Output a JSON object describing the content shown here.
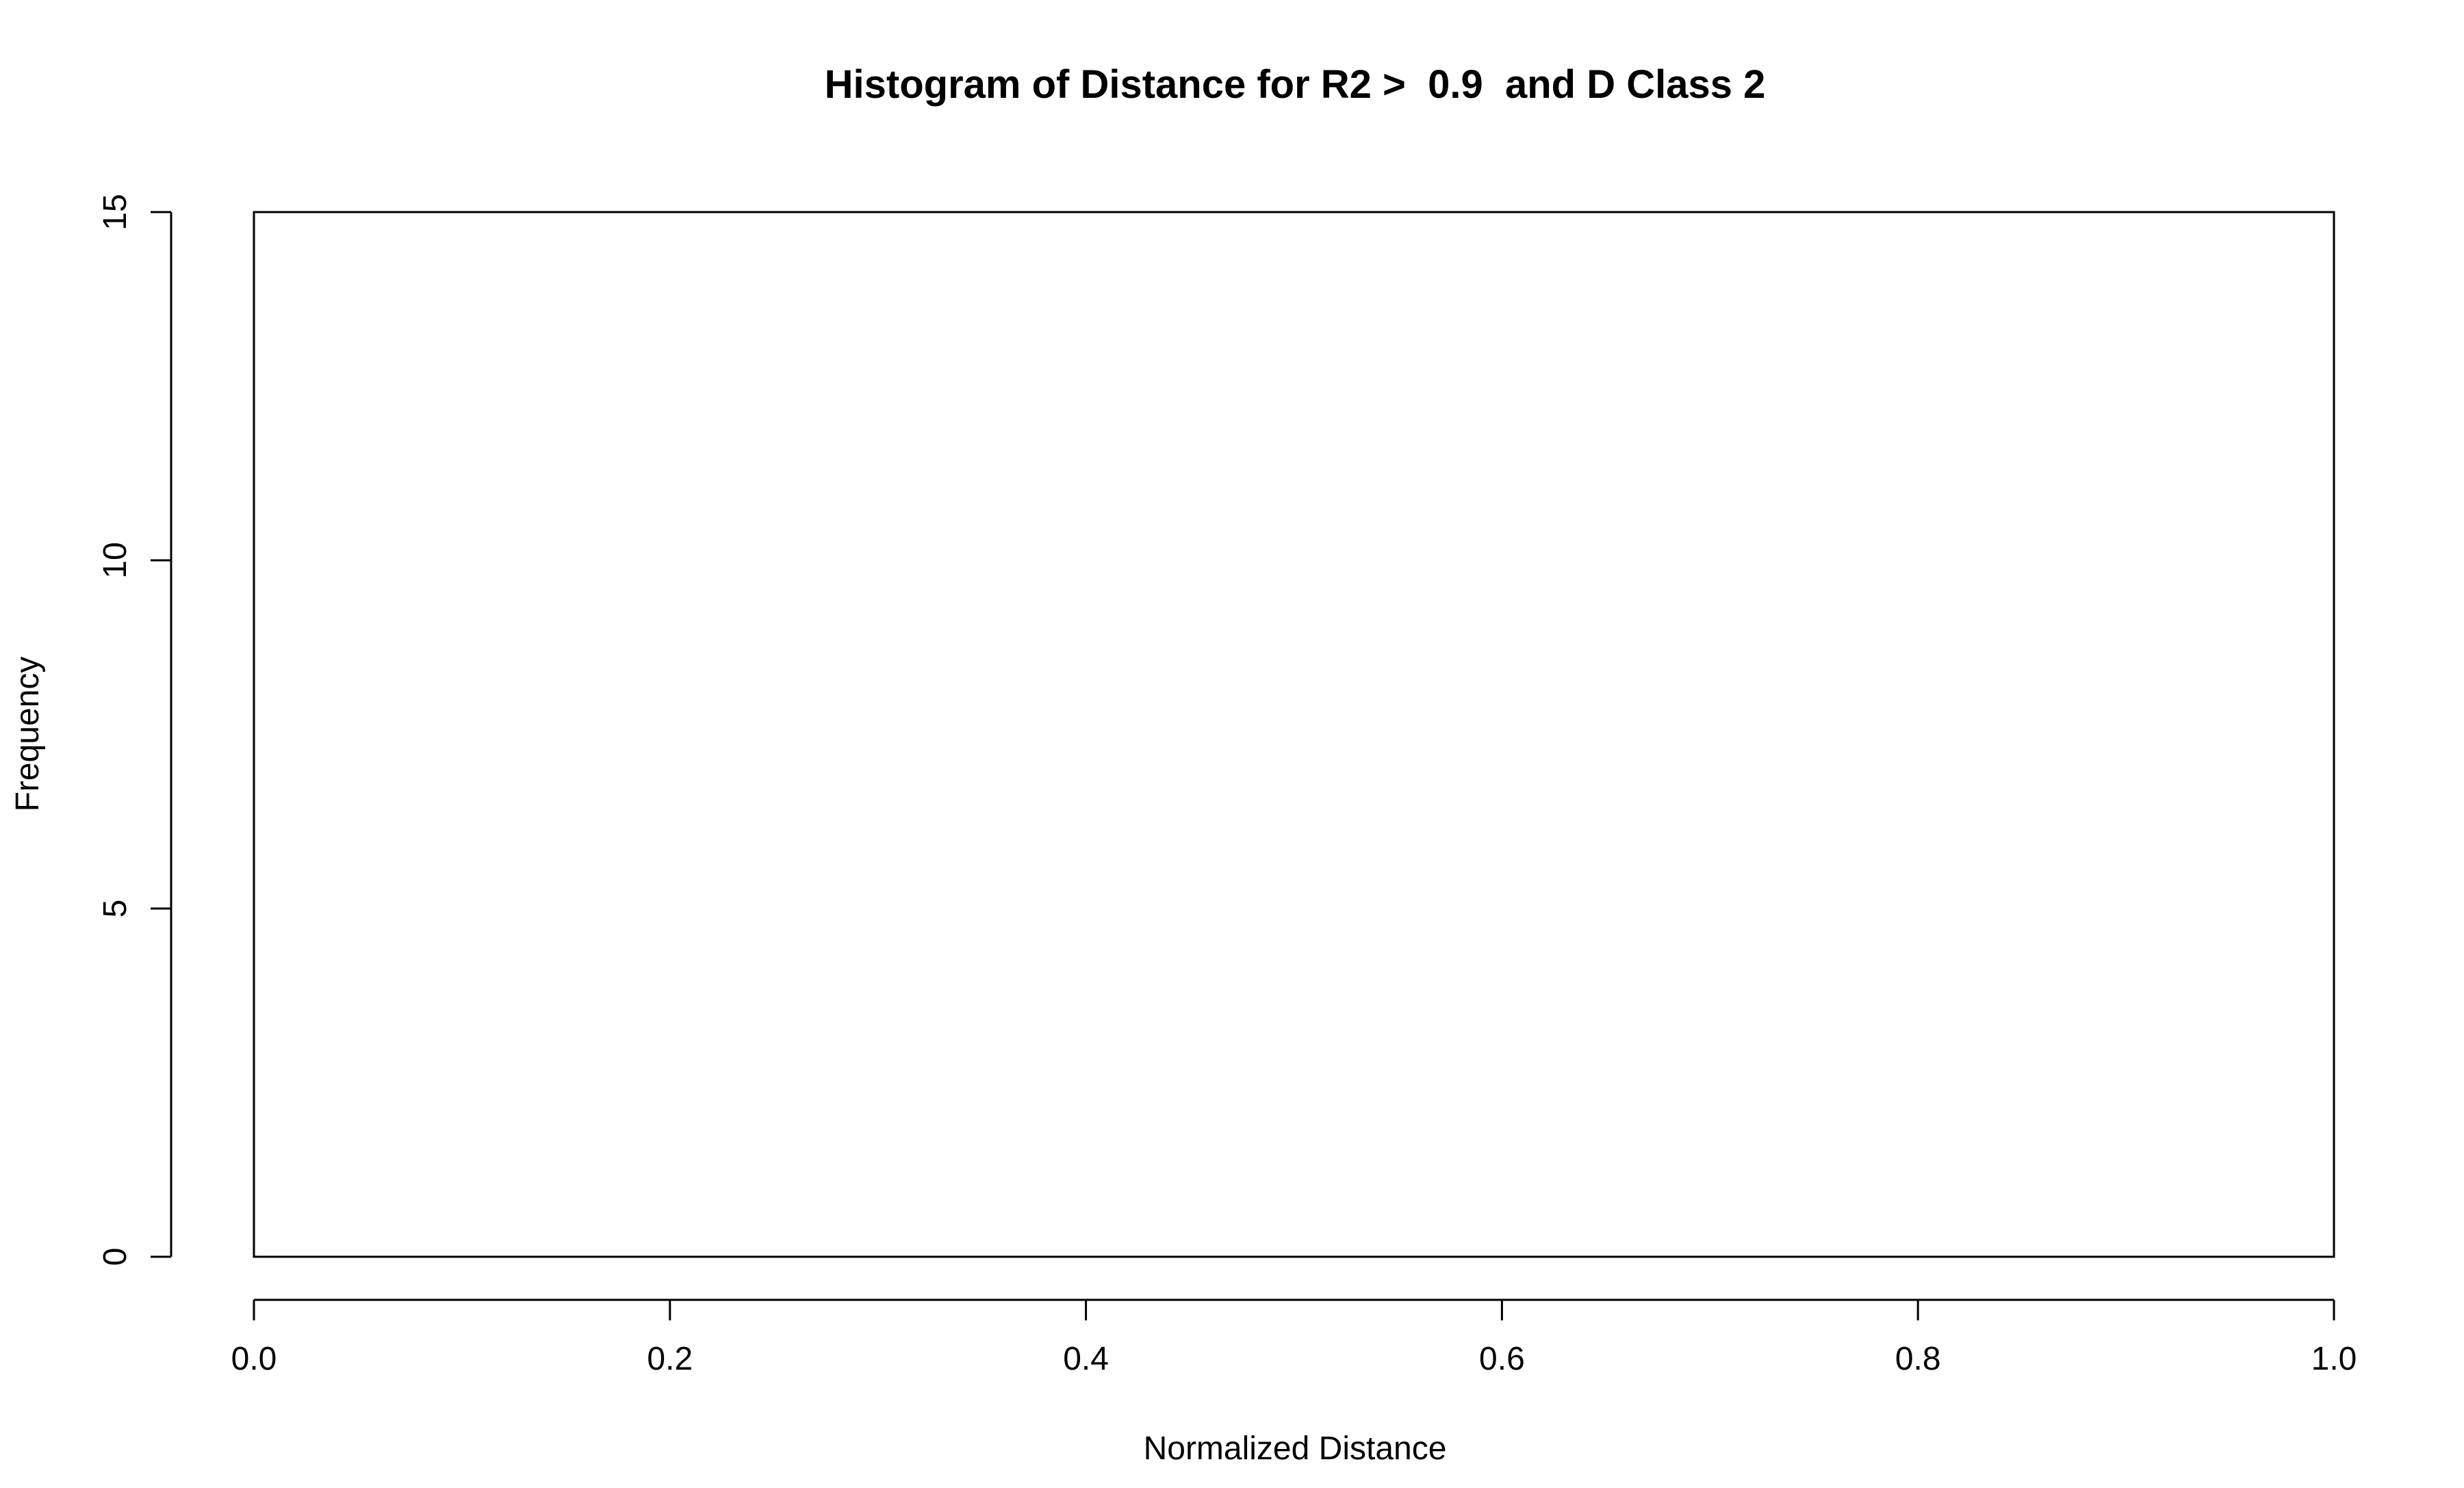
{
  "chart_data": {
    "type": "bar",
    "title": "Histogram of Distance for R2 >  0.9  and D Class 2",
    "xlabel": "Normalized Distance",
    "ylabel": "Frequency",
    "xlim": [
      0,
      1
    ],
    "ylim": [
      0,
      15
    ],
    "x_ticks": [
      "0.0",
      "0.2",
      "0.4",
      "0.6",
      "0.8",
      "1.0"
    ],
    "y_ticks": [
      "0",
      "5",
      "10",
      "15"
    ],
    "bins": [
      {
        "x0": 0.0,
        "x1": 1.0,
        "count": 15
      }
    ],
    "colors": {
      "stroke": "#000000",
      "fill": "#ffffff",
      "background": "#ffffff"
    }
  }
}
